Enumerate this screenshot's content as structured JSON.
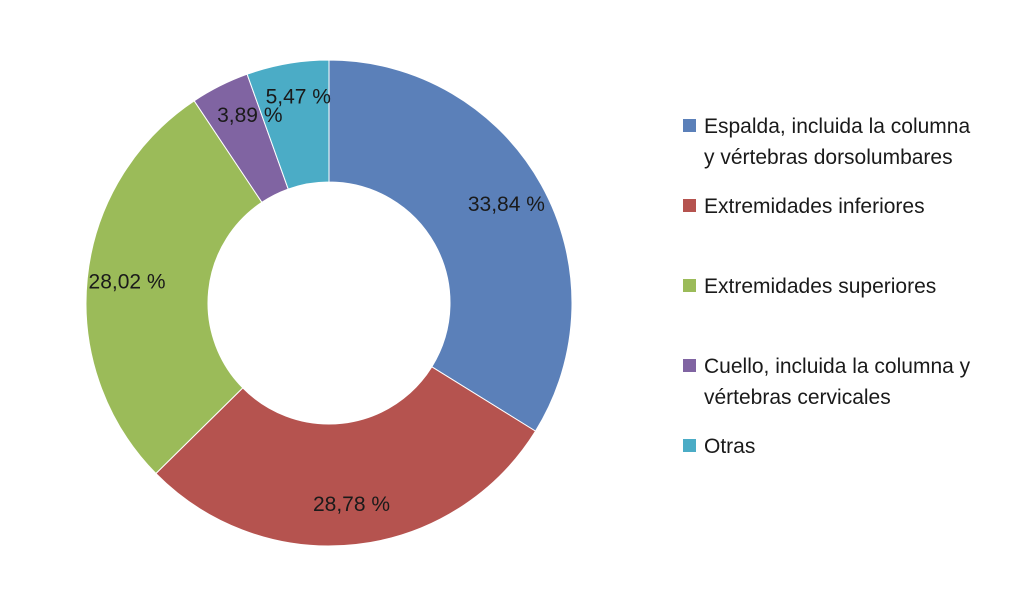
{
  "chart_data": {
    "type": "pie",
    "donut": true,
    "categories": [
      "Espalda, incluida la columna y vértebras dorsolumbares",
      "Extremidades inferiores",
      "Extremidades superiores",
      "Cuello, incluida la columna y vértebras cervicales",
      "Otras"
    ],
    "values": [
      33.84,
      28.78,
      28.02,
      3.89,
      5.47
    ],
    "value_labels": [
      "33,84 %",
      "28,78 %",
      "28,02 %",
      "3,89 %",
      "5,47 %"
    ],
    "colors": [
      "#5B80B9",
      "#B5534F",
      "#9BBB59",
      "#8064A2",
      "#4BACC6"
    ],
    "legend": {
      "position": "right",
      "entries": [
        {
          "lines": [
            "Espalda, incluida la columna",
            "y vértebras dorsolumbares"
          ]
        },
        {
          "lines": [
            "Extremidades inferiores"
          ]
        },
        {
          "lines": [
            "Extremidades superiores"
          ]
        },
        {
          "lines": [
            "Cuello, incluida la columna y",
            "vértebras cervicales"
          ]
        },
        {
          "lines": [
            "Otras"
          ]
        }
      ]
    },
    "title": ""
  }
}
